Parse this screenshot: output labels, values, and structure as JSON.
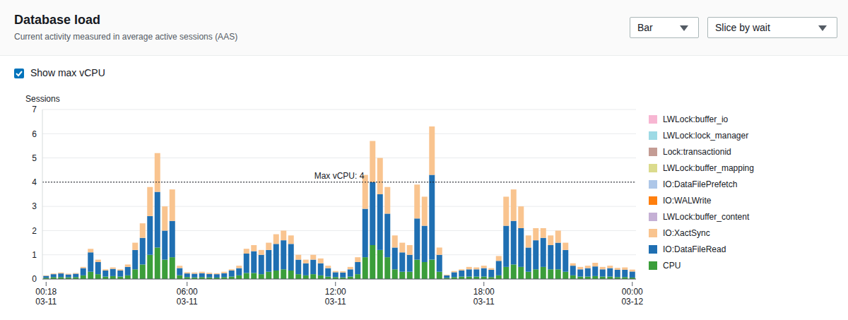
{
  "chart_data": {
    "type": "bar",
    "title": "Database load",
    "subtitle": "Current activity measured in average active sessions (AAS)",
    "chart_type_select": "Bar",
    "slice_select": "Slice by wait",
    "checkbox_label": "Show max vCPU",
    "y_label": "Sessions",
    "reference_line": {
      "value": 4,
      "label": "Max vCPU: 4"
    },
    "stacked": true,
    "grid": true,
    "legend": "right",
    "ylim": [
      0,
      7
    ],
    "yticks": [
      0,
      1,
      2,
      3,
      4,
      5,
      6,
      7
    ],
    "categories": [
      "00:18\n03-11",
      null,
      null,
      null,
      null,
      null,
      null,
      null,
      null,
      null,
      null,
      null,
      null,
      null,
      null,
      null,
      null,
      null,
      null,
      "06:00\n03-11",
      null,
      null,
      null,
      null,
      null,
      null,
      null,
      null,
      null,
      null,
      null,
      null,
      null,
      null,
      null,
      null,
      null,
      null,
      null,
      "12:00\n03-11",
      null,
      null,
      null,
      null,
      null,
      null,
      null,
      null,
      null,
      null,
      null,
      null,
      null,
      null,
      null,
      null,
      null,
      null,
      null,
      "18:00\n03-11",
      null,
      null,
      null,
      null,
      null,
      null,
      null,
      null,
      null,
      null,
      null,
      null,
      null,
      null,
      null,
      null,
      null,
      null,
      null,
      "00:00\n03-12"
    ],
    "series": [
      {
        "name": "LWLock:buffer_io",
        "color": "#f7b6d2",
        "values": [
          0,
          0,
          0,
          0,
          0,
          0,
          0,
          0,
          0,
          0,
          0,
          0,
          0,
          0,
          0,
          0,
          0,
          0,
          0,
          0,
          0,
          0,
          0,
          0,
          0,
          0,
          0,
          0,
          0,
          0,
          0,
          0,
          0,
          0,
          0,
          0,
          0,
          0,
          0,
          0,
          0,
          0,
          0,
          0,
          0,
          0,
          0,
          0,
          0,
          0,
          0,
          0,
          0,
          0,
          0,
          0,
          0,
          0,
          0,
          0,
          0,
          0,
          0,
          0,
          0,
          0,
          0,
          0,
          0,
          0,
          0,
          0,
          0,
          0,
          0,
          0,
          0,
          0,
          0,
          0
        ]
      },
      {
        "name": "LWLock:lock_manager",
        "color": "#9edae5",
        "values": [
          0,
          0,
          0,
          0,
          0,
          0,
          0,
          0,
          0,
          0,
          0,
          0,
          0,
          0,
          0,
          0,
          0,
          0,
          0,
          0,
          0,
          0,
          0,
          0,
          0,
          0,
          0,
          0,
          0,
          0,
          0,
          0,
          0,
          0,
          0,
          0,
          0,
          0,
          0,
          0,
          0,
          0,
          0,
          0,
          0,
          0,
          0,
          0,
          0,
          0,
          0,
          0,
          0,
          0,
          0,
          0,
          0,
          0,
          0,
          0,
          0,
          0,
          0,
          0,
          0,
          0,
          0,
          0,
          0,
          0,
          0,
          0,
          0,
          0,
          0,
          0,
          0,
          0,
          0,
          0
        ]
      },
      {
        "name": "Lock:transactionid",
        "color": "#c49c94",
        "values": [
          0,
          0,
          0,
          0,
          0,
          0,
          0,
          0,
          0,
          0,
          0,
          0,
          0,
          0,
          0,
          0,
          0,
          0,
          0,
          0,
          0,
          0,
          0,
          0,
          0,
          0,
          0,
          0,
          0,
          0,
          0,
          0,
          0,
          0,
          0,
          0,
          0,
          0,
          0,
          0,
          0,
          0,
          0,
          0,
          0,
          0,
          0,
          0,
          0,
          0,
          0,
          0,
          0,
          0,
          0,
          0,
          0,
          0,
          0,
          0,
          0,
          0,
          0,
          0,
          0,
          0,
          0,
          0,
          0,
          0,
          0,
          0,
          0,
          0,
          0,
          0,
          0,
          0,
          0,
          0
        ]
      },
      {
        "name": "LWLock:buffer_mapping",
        "color": "#dbdb8d",
        "values": [
          0,
          0,
          0,
          0,
          0,
          0,
          0,
          0,
          0,
          0,
          0,
          0,
          0,
          0,
          0,
          0,
          0,
          0,
          0,
          0,
          0,
          0,
          0,
          0,
          0,
          0,
          0,
          0,
          0,
          0,
          0,
          0,
          0,
          0,
          0,
          0,
          0,
          0,
          0,
          0,
          0,
          0,
          0,
          0,
          0,
          0,
          0,
          0,
          0,
          0,
          0,
          0,
          0,
          0,
          0,
          0,
          0,
          0,
          0,
          0,
          0,
          0,
          0,
          0,
          0,
          0,
          0,
          0,
          0,
          0,
          0,
          0,
          0,
          0,
          0,
          0,
          0,
          0,
          0,
          0
        ]
      },
      {
        "name": "IO:DataFilePrefetch",
        "color": "#aec7e8",
        "values": [
          0,
          0,
          0,
          0,
          0,
          0,
          0,
          0,
          0,
          0,
          0,
          0,
          0,
          0,
          0,
          0,
          0,
          0,
          0,
          0,
          0,
          0,
          0,
          0,
          0,
          0,
          0,
          0,
          0,
          0,
          0,
          0,
          0,
          0,
          0,
          0,
          0,
          0,
          0,
          0,
          0,
          0,
          0,
          0,
          0,
          0,
          0,
          0,
          0,
          0,
          0,
          0,
          0,
          0,
          0,
          0,
          0,
          0,
          0,
          0,
          0,
          0,
          0,
          0,
          0,
          0,
          0,
          0,
          0,
          0,
          0,
          0,
          0,
          0,
          0,
          0,
          0,
          0,
          0,
          0
        ]
      },
      {
        "name": "IO:WALWrite",
        "color": "#ff7f0e",
        "values": [
          0,
          0,
          0,
          0,
          0,
          0,
          0,
          0,
          0,
          0,
          0,
          0,
          0,
          0,
          0,
          0,
          0,
          0,
          0,
          0,
          0,
          0,
          0,
          0,
          0,
          0,
          0,
          0,
          0,
          0,
          0,
          0,
          0,
          0,
          0,
          0,
          0,
          0,
          0,
          0,
          0,
          0,
          0,
          0,
          0,
          0,
          0,
          0,
          0,
          0,
          0,
          0,
          0,
          0,
          0,
          0,
          0,
          0,
          0,
          0,
          0,
          0,
          0,
          0,
          0,
          0,
          0,
          0,
          0,
          0,
          0,
          0,
          0,
          0,
          0,
          0,
          0,
          0,
          0,
          0
        ]
      },
      {
        "name": "LWLock:buffer_content",
        "color": "#c5b0d5",
        "values": [
          0,
          0,
          0,
          0,
          0,
          0,
          0,
          0,
          0,
          0,
          0,
          0,
          0,
          0,
          0,
          0,
          0,
          0,
          0,
          0,
          0,
          0,
          0,
          0,
          0,
          0,
          0,
          0,
          0,
          0,
          0,
          0,
          0,
          0,
          0,
          0,
          0,
          0,
          0,
          0,
          0,
          0,
          0,
          0,
          0,
          0,
          0,
          0,
          0,
          0,
          0,
          0,
          0,
          0,
          0,
          0,
          0,
          0,
          0,
          0,
          0,
          0,
          0,
          0,
          0,
          0,
          0,
          0,
          0,
          0,
          0,
          0,
          0,
          0,
          0,
          0,
          0,
          0,
          0,
          0
        ]
      },
      {
        "name": "IO:XactSync",
        "color": "#f9c48f",
        "values": [
          0.02,
          0.03,
          0.04,
          0.03,
          0.03,
          0.05,
          0.15,
          0.1,
          0.05,
          0.06,
          0.05,
          0.1,
          0.3,
          0.6,
          1.2,
          1.6,
          1.0,
          1.3,
          0.1,
          0.05,
          0.05,
          0.06,
          0.05,
          0.04,
          0.06,
          0.05,
          0.1,
          0.2,
          0.25,
          0.2,
          0.3,
          0.4,
          0.4,
          0.35,
          0.2,
          0.15,
          0.2,
          0.2,
          0.1,
          0.05,
          0.05,
          0.1,
          0.2,
          1.4,
          1.7,
          1.5,
          1.1,
          0.5,
          0.4,
          0.4,
          1.4,
          1.2,
          2.0,
          0.3,
          0.03,
          0.05,
          0.05,
          0.1,
          0.08,
          0.1,
          0.07,
          0.2,
          1.2,
          1.3,
          0.9,
          0.5,
          0.5,
          0.4,
          0.4,
          0.5,
          0.3,
          0.1,
          0.1,
          0.1,
          0.15,
          0.1,
          0.1,
          0.08,
          0.1,
          0.08
        ]
      },
      {
        "name": "IO:DataFileRead",
        "color": "#1f6fb2",
        "values": [
          0.08,
          0.12,
          0.15,
          0.12,
          0.14,
          0.3,
          0.8,
          0.5,
          0.25,
          0.3,
          0.25,
          0.35,
          0.8,
          1.1,
          1.6,
          2.3,
          1.2,
          1.5,
          0.3,
          0.15,
          0.15,
          0.16,
          0.14,
          0.14,
          0.16,
          0.25,
          0.3,
          0.8,
          0.9,
          0.8,
          0.9,
          1.1,
          1.2,
          1.1,
          0.6,
          0.5,
          0.6,
          0.5,
          0.35,
          0.2,
          0.2,
          0.3,
          0.5,
          2.0,
          2.6,
          2.3,
          1.8,
          0.9,
          0.8,
          0.7,
          1.7,
          1.5,
          3.5,
          0.7,
          0.1,
          0.2,
          0.25,
          0.3,
          0.3,
          0.35,
          0.3,
          0.6,
          1.7,
          1.8,
          1.6,
          1.0,
          1.2,
          1.2,
          1.0,
          1.1,
          0.9,
          0.4,
          0.3,
          0.35,
          0.4,
          0.3,
          0.35,
          0.3,
          0.3,
          0.25
        ]
      },
      {
        "name": "CPU",
        "color": "#3b9e3a",
        "values": [
          0.05,
          0.08,
          0.08,
          0.07,
          0.08,
          0.15,
          0.3,
          0.2,
          0.1,
          0.12,
          0.1,
          0.15,
          0.4,
          0.6,
          1.0,
          1.3,
          0.8,
          0.9,
          0.15,
          0.08,
          0.07,
          0.08,
          0.07,
          0.06,
          0.08,
          0.1,
          0.15,
          0.25,
          0.25,
          0.2,
          0.3,
          0.35,
          0.4,
          0.35,
          0.2,
          0.15,
          0.2,
          0.15,
          0.1,
          0.08,
          0.07,
          0.1,
          0.2,
          0.9,
          1.4,
          1.2,
          0.9,
          0.4,
          0.3,
          0.3,
          0.8,
          0.7,
          0.8,
          0.3,
          0.05,
          0.08,
          0.1,
          0.1,
          0.1,
          0.1,
          0.08,
          0.15,
          0.5,
          0.6,
          0.5,
          0.3,
          0.4,
          0.5,
          0.4,
          0.4,
          0.3,
          0.15,
          0.1,
          0.1,
          0.12,
          0.1,
          0.1,
          0.08,
          0.08,
          0.06
        ]
      }
    ]
  }
}
